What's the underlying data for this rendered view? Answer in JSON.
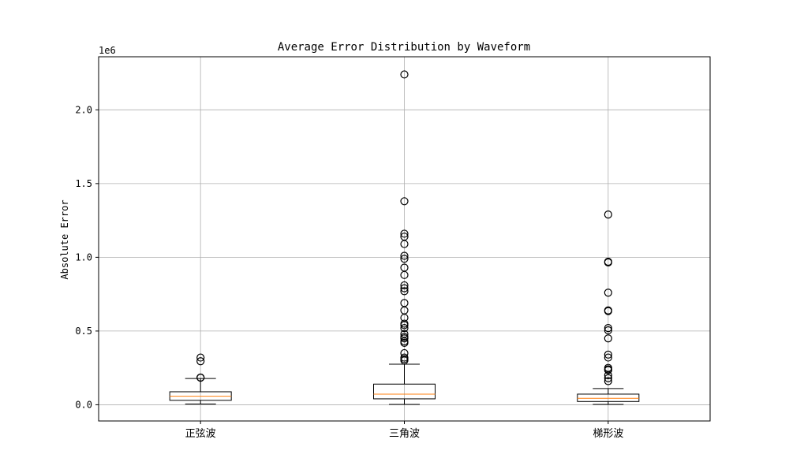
{
  "chart_data": {
    "type": "boxplot",
    "title": "Average Error Distribution by Waveform",
    "xlabel": "",
    "ylabel": "Absolute Error",
    "y_scale_label": "1e6",
    "ylim": [
      -110000,
      2360000
    ],
    "y_ticks": [
      0,
      500000,
      1000000,
      1500000,
      2000000
    ],
    "y_tick_labels": [
      "0.0",
      "0.5",
      "1.0",
      "1.5",
      "2.0"
    ],
    "grid": true,
    "colors": {
      "box": "#000000",
      "median": "#ff7f0e",
      "grid": "#b0b0b0"
    },
    "categories": [
      "正弦波",
      "三角波",
      "梯形波"
    ],
    "boxes": [
      {
        "name": "正弦波",
        "whisker_low": 5000,
        "q1": 30000,
        "median": 58000,
        "q3": 88000,
        "whisker_high": 178000,
        "outliers": [
          320000,
          295000,
          185000,
          183000
        ]
      },
      {
        "name": "三角波",
        "whisker_low": 2000,
        "q1": 40000,
        "median": 72000,
        "q3": 140000,
        "whisker_high": 275000,
        "outliers": [
          2240000,
          1380000,
          1160000,
          1140000,
          1090000,
          1010000,
          990000,
          930000,
          880000,
          810000,
          790000,
          770000,
          690000,
          640000,
          590000,
          550000,
          540000,
          520000,
          480000,
          460000,
          450000,
          430000,
          420000,
          350000,
          320000,
          310000,
          300000
        ]
      },
      {
        "name": "梯形波",
        "whisker_low": 2000,
        "q1": 22000,
        "median": 44000,
        "q3": 72000,
        "whisker_high": 110000,
        "outliers": [
          1290000,
          970000,
          965000,
          760000,
          640000,
          635000,
          520000,
          505000,
          450000,
          340000,
          320000,
          250000,
          240000,
          235000,
          200000,
          180000,
          160000
        ]
      }
    ]
  }
}
